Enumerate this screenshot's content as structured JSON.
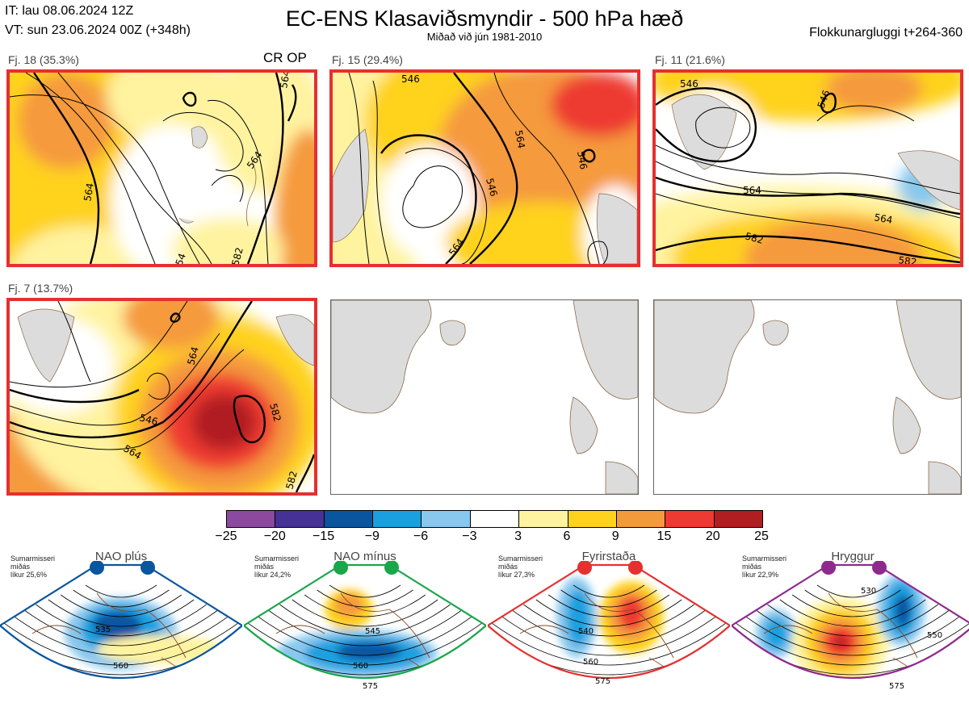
{
  "header": {
    "init_time": "IT: lau 08.06.2024 12Z",
    "valid_time": "VT: sun 23.06.2024 00Z  (+348h)",
    "title": "EC-ENS Klasaviðsmyndir - 500 hPa hæð",
    "subtitle": "Miðað við jún 1981-2010",
    "window": "Flokkunargluggi t+264-360"
  },
  "clusters": [
    {
      "label": "Fj. 18 (35.3%)",
      "selected": true,
      "tag": "CR OP",
      "contours": [
        "564",
        "564",
        "564",
        "582",
        "54"
      ]
    },
    {
      "label": "Fj. 15 (29.4%)",
      "selected": true,
      "contours": [
        "546",
        "546",
        "564",
        "564",
        "546"
      ]
    },
    {
      "label": "Fj. 11 (21.6%)",
      "selected": true,
      "contours": [
        "546",
        "546",
        "564",
        "564",
        "582",
        "582"
      ]
    },
    {
      "label": "Fj. 7 (13.7%)",
      "selected": true,
      "contours": [
        "546",
        "564",
        "564",
        "582",
        "582"
      ]
    }
  ],
  "colorbar": {
    "ticks": [
      "−25",
      "−20",
      "−15",
      "−9",
      "−6",
      "−3",
      "3",
      "6",
      "9",
      "15",
      "20",
      "25"
    ],
    "colors": [
      "#8b4a9e",
      "#463296",
      "#0a55a0",
      "#1aa0e0",
      "#88c8ee",
      "#ffffff",
      "#fff3a0",
      "#ffd21e",
      "#f59a3c",
      "#ee3a30",
      "#b01e22"
    ]
  },
  "regimes": [
    {
      "title": "NAO plús",
      "season": "Sumarmisseri",
      "sub": "miðás",
      "prob": "líkur 25,6%",
      "color": "#0a55a0",
      "contours": [
        "535",
        "560"
      ]
    },
    {
      "title": "NAO mínus",
      "season": "Sumarmisseri",
      "sub": "miðás",
      "prob": "líkur 24,2%",
      "color": "#1aa64a",
      "contours": [
        "545",
        "560",
        "575"
      ]
    },
    {
      "title": "Fyrirstaða",
      "season": "Sumarmisseri",
      "sub": "miðás",
      "prob": "líkur 27,3%",
      "color": "#e53030",
      "contours": [
        "540",
        "560",
        "575"
      ]
    },
    {
      "title": "Hryggur",
      "season": "Sumarmisseri",
      "sub": "miðás",
      "prob": "líkur 22,9%",
      "color": "#8e2a8e",
      "contours": [
        "530",
        "550",
        "575"
      ]
    }
  ]
}
